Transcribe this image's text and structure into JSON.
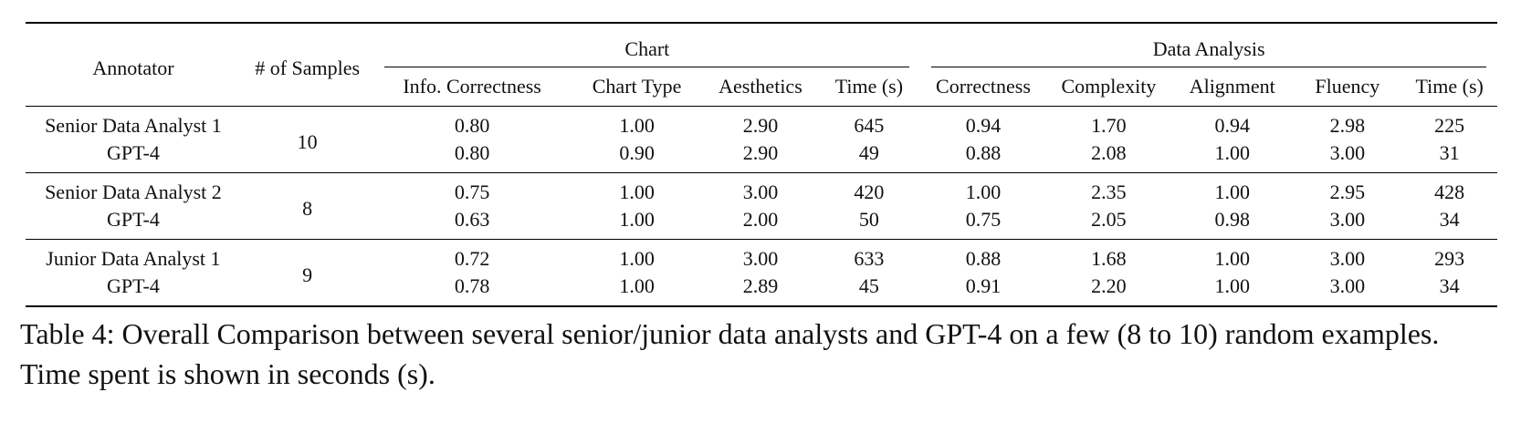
{
  "table": {
    "headers": {
      "annotator": "Annotator",
      "samples": "# of Samples",
      "chart_group": "Chart",
      "analysis_group": "Data Analysis",
      "chart_columns": [
        "Info. Correctness",
        "Chart Type",
        "Aesthetics",
        "Time (s)"
      ],
      "analysis_columns": [
        "Correctness",
        "Complexity",
        "Alignment",
        "Fluency",
        "Time (s)"
      ]
    },
    "groups": [
      {
        "samples": "10",
        "rows": [
          {
            "annotator": "Senior Data Analyst 1",
            "values": [
              "0.80",
              "1.00",
              "2.90",
              "645",
              "0.94",
              "1.70",
              "0.94",
              "2.98",
              "225"
            ]
          },
          {
            "annotator": "GPT-4",
            "values": [
              "0.80",
              "0.90",
              "2.90",
              "49",
              "0.88",
              "2.08",
              "1.00",
              "3.00",
              "31"
            ]
          }
        ]
      },
      {
        "samples": "8",
        "rows": [
          {
            "annotator": "Senior Data Analyst 2",
            "values": [
              "0.75",
              "1.00",
              "3.00",
              "420",
              "1.00",
              "2.35",
              "1.00",
              "2.95",
              "428"
            ]
          },
          {
            "annotator": "GPT-4",
            "values": [
              "0.63",
              "1.00",
              "2.00",
              "50",
              "0.75",
              "2.05",
              "0.98",
              "3.00",
              "34"
            ]
          }
        ]
      },
      {
        "samples": "9",
        "rows": [
          {
            "annotator": "Junior Data Analyst 1",
            "values": [
              "0.72",
              "1.00",
              "3.00",
              "633",
              "0.88",
              "1.68",
              "1.00",
              "3.00",
              "293"
            ]
          },
          {
            "annotator": "GPT-4",
            "values": [
              "0.78",
              "1.00",
              "2.89",
              "45",
              "0.91",
              "2.20",
              "1.00",
              "3.00",
              "34"
            ]
          }
        ]
      }
    ]
  },
  "caption": "Table 4: Overall Comparison between several senior/junior data analysts and GPT-4 on a few (8 to 10) random examples. Time spent is shown in seconds (s)."
}
